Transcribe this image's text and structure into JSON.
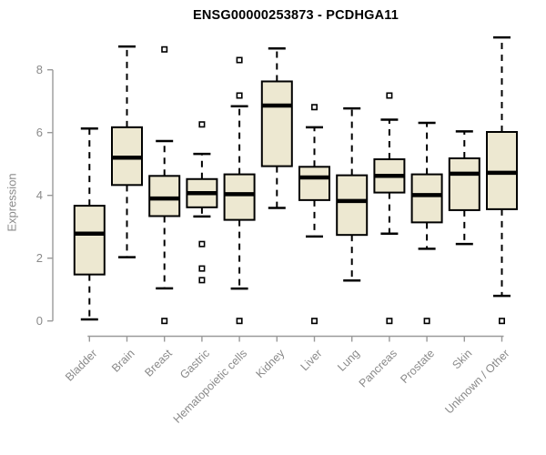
{
  "chart_data": {
    "type": "box",
    "title": "ENSG00000253873 - PCDHGA11",
    "xlabel": "",
    "ylabel": "Expression",
    "ylim": [
      0,
      8
    ],
    "yticks": [
      0,
      2,
      4,
      6,
      8
    ],
    "grid": false,
    "legend": null,
    "categories": [
      "Bladder",
      "Brain",
      "Breast",
      "Gastric",
      "Hematopoietic cells",
      "Kidney",
      "Liver",
      "Lung",
      "Pancreas",
      "Prostate",
      "Skin",
      "Unknown / Other"
    ],
    "series": [
      {
        "name": "Bladder",
        "whisker_low": 0.05,
        "q1": 1.48,
        "median": 2.78,
        "q3": 3.67,
        "whisker_high": 6.13,
        "outliers": []
      },
      {
        "name": "Brain",
        "whisker_low": 2.03,
        "q1": 4.33,
        "median": 5.2,
        "q3": 6.17,
        "whisker_high": 8.74,
        "outliers": []
      },
      {
        "name": "Breast",
        "whisker_low": 1.04,
        "q1": 3.34,
        "median": 3.9,
        "q3": 4.62,
        "whisker_high": 5.73,
        "outliers": [
          8.65,
          0
        ]
      },
      {
        "name": "Gastric",
        "whisker_low": 3.33,
        "q1": 3.62,
        "median": 4.07,
        "q3": 4.52,
        "whisker_high": 5.32,
        "outliers": [
          6.26,
          2.45,
          1.67,
          1.3
        ]
      },
      {
        "name": "Hematopoietic cells",
        "whisker_low": 1.03,
        "q1": 3.22,
        "median": 4.04,
        "q3": 4.67,
        "whisker_high": 6.84,
        "outliers": [
          8.31,
          7.18,
          0
        ]
      },
      {
        "name": "Kidney",
        "whisker_low": 3.6,
        "q1": 4.93,
        "median": 6.86,
        "q3": 7.63,
        "whisker_high": 8.68,
        "outliers": []
      },
      {
        "name": "Liver",
        "whisker_low": 2.69,
        "q1": 3.85,
        "median": 4.57,
        "q3": 4.91,
        "whisker_high": 6.17,
        "outliers": [
          6.81,
          0
        ]
      },
      {
        "name": "Lung",
        "whisker_low": 1.29,
        "q1": 2.74,
        "median": 3.82,
        "q3": 4.64,
        "whisker_high": 6.77,
        "outliers": []
      },
      {
        "name": "Pancreas",
        "whisker_low": 2.78,
        "q1": 4.09,
        "median": 4.62,
        "q3": 5.15,
        "whisker_high": 6.41,
        "outliers": [
          7.18,
          0
        ]
      },
      {
        "name": "Prostate",
        "whisker_low": 2.3,
        "q1": 3.14,
        "median": 4.01,
        "q3": 4.67,
        "whisker_high": 6.31,
        "outliers": [
          0
        ]
      },
      {
        "name": "Skin",
        "whisker_low": 2.45,
        "q1": 3.53,
        "median": 4.69,
        "q3": 5.18,
        "whisker_high": 6.04,
        "outliers": []
      },
      {
        "name": "Unknown / Other",
        "whisker_low": 0.8,
        "q1": 3.56,
        "median": 4.72,
        "q3": 6.02,
        "whisker_high": 9.03,
        "outliers": [
          0
        ]
      }
    ],
    "colors": {
      "box_fill": "#ede8d1",
      "box_stroke": "#000000",
      "median_color": "#000000",
      "whisker_color": "#000000",
      "outlier_stroke": "#000000",
      "outlier_fill": "#ffffff",
      "axis_text": "#8a8a8a",
      "axis_line": "#9a9a9a",
      "title_color": "#000000",
      "background": "#ffffff"
    }
  }
}
